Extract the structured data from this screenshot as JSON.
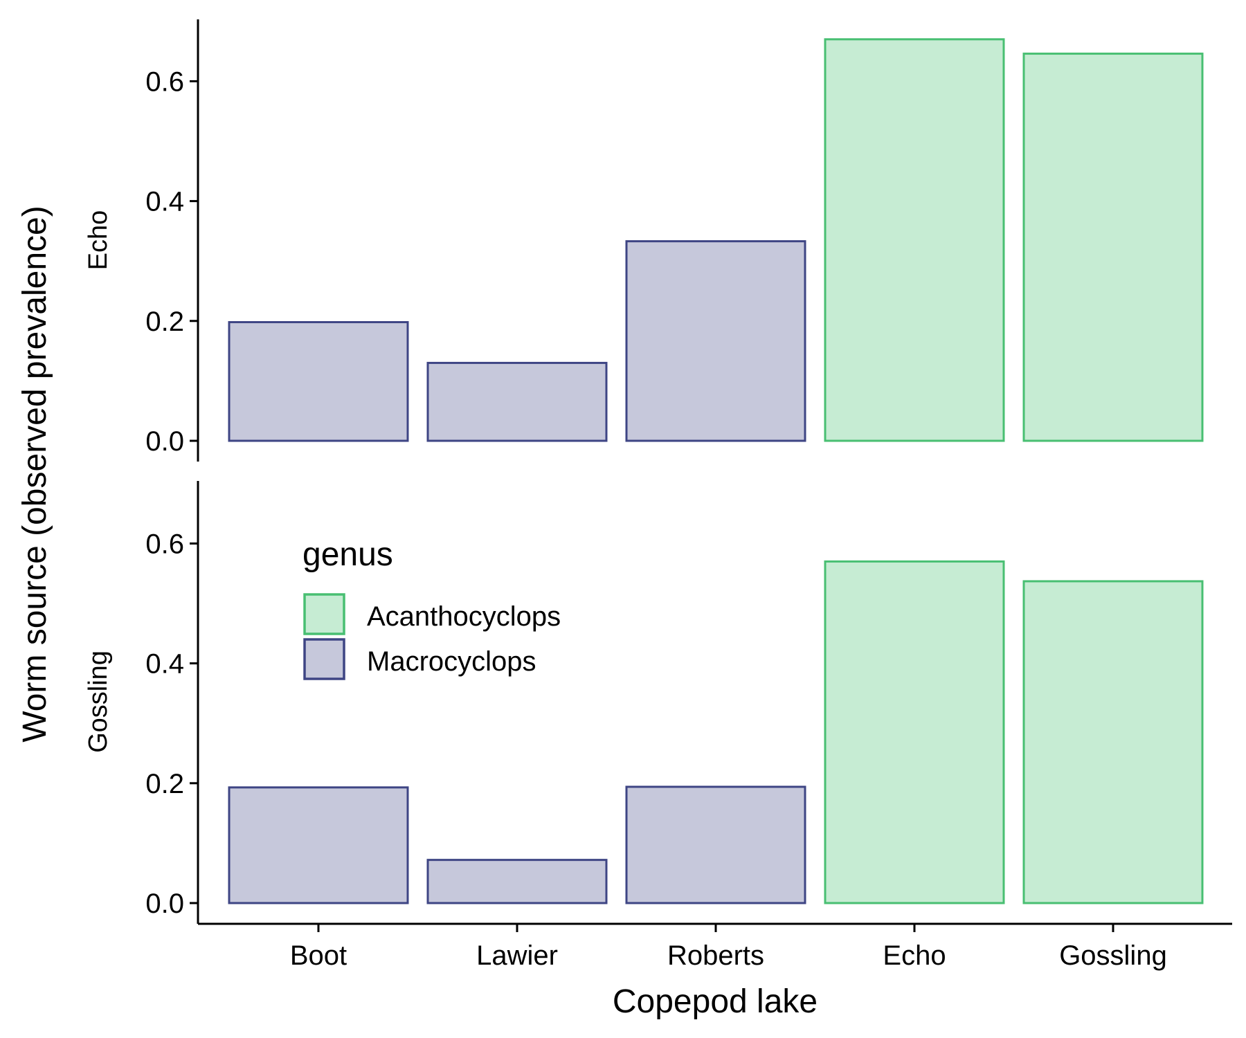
{
  "chart_data": {
    "type": "bar",
    "xlabel": "Copepod lake",
    "ylabel": "Worm source (observed prevalence)",
    "categories": [
      "Boot",
      "Lawier",
      "Roberts",
      "Echo",
      "Gossling"
    ],
    "ylim": [
      0,
      0.7
    ],
    "yticks": [
      "0.0",
      "0.2",
      "0.4",
      "0.6"
    ],
    "grid": false,
    "legend": {
      "title": "genus",
      "position": "inside-left (lower panel)",
      "entries": [
        {
          "label": "Acanthocyclops",
          "fill": "#c6ecd3",
          "stroke": "#48bf72"
        },
        {
          "label": "Macrocyclops",
          "fill": "#c6c8db",
          "stroke": "#3e4584"
        }
      ]
    },
    "genus_by_category": [
      "Macrocyclops",
      "Macrocyclops",
      "Macrocyclops",
      "Acanthocyclops",
      "Acanthocyclops"
    ],
    "panels": [
      {
        "facet": "Echo",
        "values": [
          0.198,
          0.13,
          0.333,
          0.67,
          0.646
        ]
      },
      {
        "facet": "Gossling",
        "values": [
          0.193,
          0.072,
          0.194,
          0.57,
          0.537
        ]
      }
    ]
  }
}
